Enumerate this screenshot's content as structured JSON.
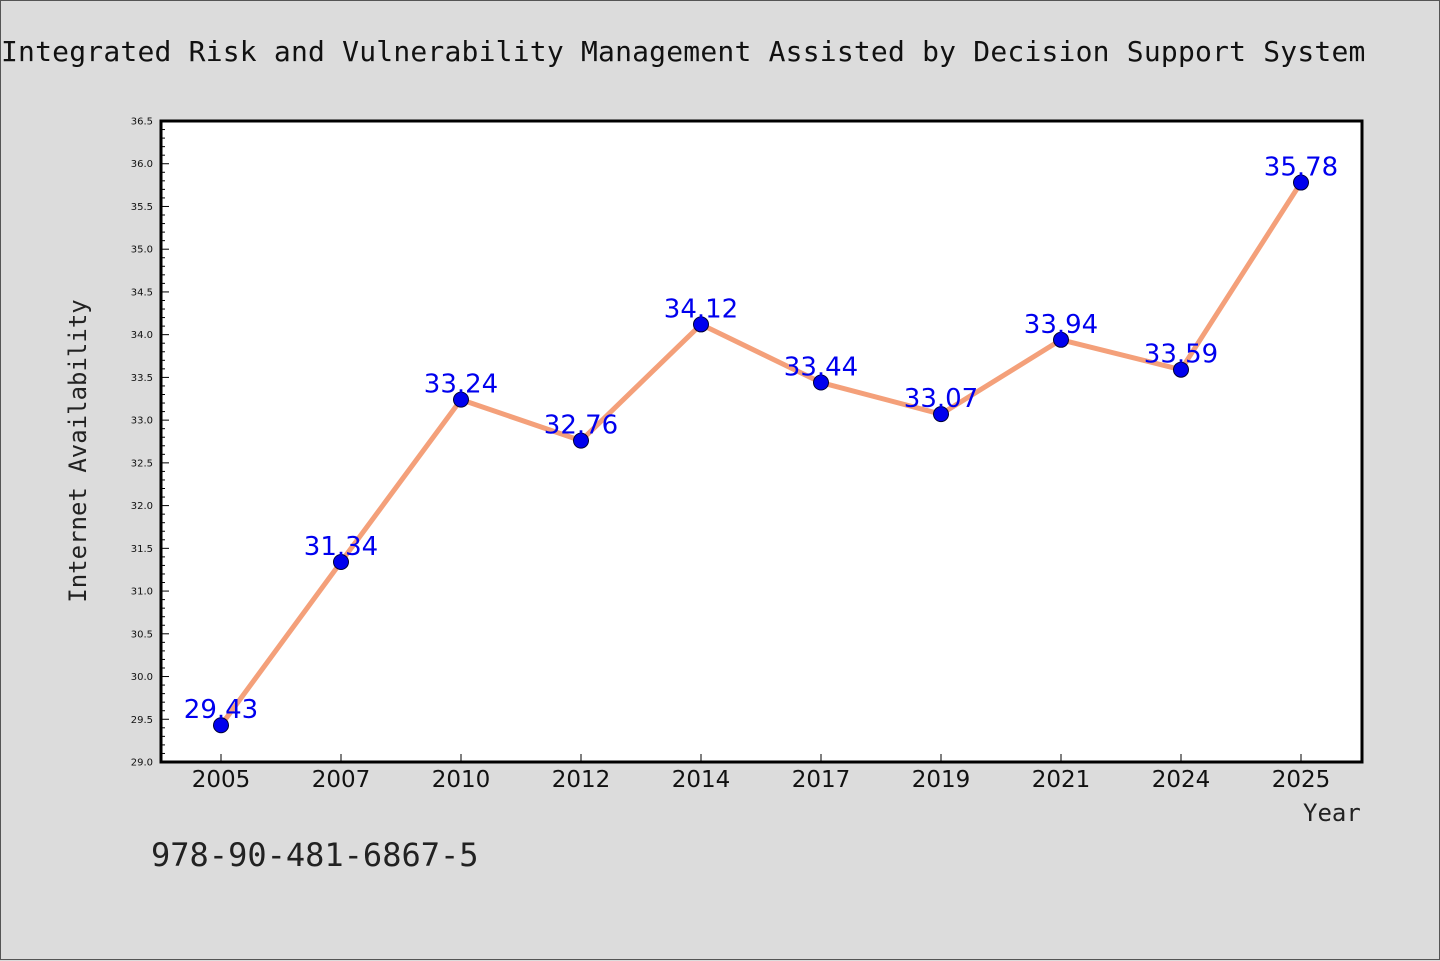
{
  "chart_data": {
    "type": "line",
    "title": "Integrated Risk and Vulnerability Management Assisted by Decision Support System",
    "xlabel": "Year",
    "ylabel": "Internet Availability",
    "categories": [
      "2005",
      "2007",
      "2010",
      "2012",
      "2014",
      "2017",
      "2019",
      "2021",
      "2024",
      "2025"
    ],
    "series": [
      {
        "values": [
          29.43,
          31.34,
          33.24,
          32.76,
          34.12,
          33.44,
          33.07,
          33.94,
          33.59,
          35.78
        ],
        "line_color": "#f4a07a",
        "marker_color": "#0000ee"
      }
    ],
    "data_labels": [
      "29.43",
      "31.34",
      "33.24",
      "32.76",
      "34.12",
      "33.44",
      "33.07",
      "33.94",
      "33.59",
      "35.78"
    ],
    "ylim": [
      29.0,
      36.5
    ],
    "yticks": [
      "29.0",
      "29.5",
      "30.0",
      "30.5",
      "31.0",
      "31.5",
      "32.0",
      "32.5",
      "33.0",
      "33.5",
      "34.0",
      "34.5",
      "35.0",
      "35.5",
      "36.0",
      "36.5"
    ],
    "grid": false,
    "label_color": "#0000ee"
  },
  "footer": {
    "isbn": "978-90-481-6867-5"
  }
}
